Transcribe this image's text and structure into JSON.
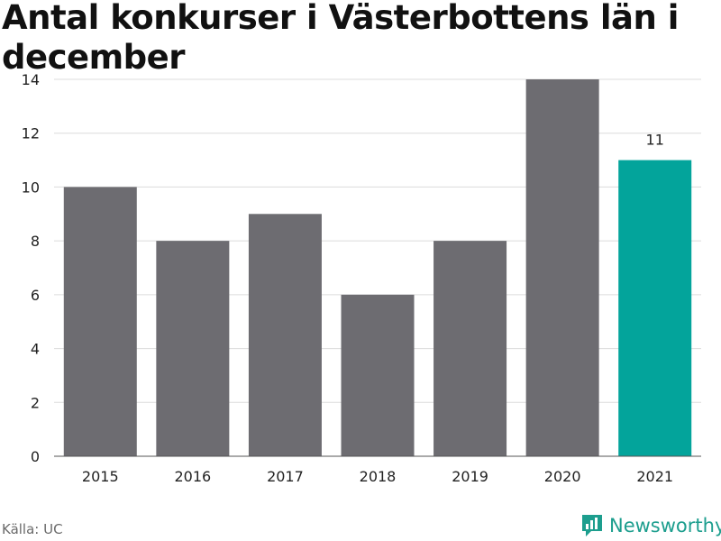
{
  "chart_data": {
    "type": "bar",
    "title": "Antal konkurser i Västerbottens län i december",
    "categories": [
      "2015",
      "2016",
      "2017",
      "2018",
      "2019",
      "2020",
      "2021"
    ],
    "values": [
      10,
      8,
      9,
      6,
      8,
      14,
      11
    ],
    "ylim": [
      0,
      14
    ],
    "yticks": [
      0,
      2,
      4,
      6,
      8,
      10,
      12,
      14
    ],
    "grid": true,
    "colors": {
      "default": "#6d6c71",
      "highlight": "#03a49b"
    },
    "highlight_index": 6,
    "data_labels": [
      {
        "index": 6,
        "text": "11"
      }
    ]
  },
  "footer": {
    "source": "Källa: UC",
    "brand": "Newsworthy",
    "brand_icon": "bar-chart-logo-icon",
    "brand_color": "#1d9e8e"
  }
}
